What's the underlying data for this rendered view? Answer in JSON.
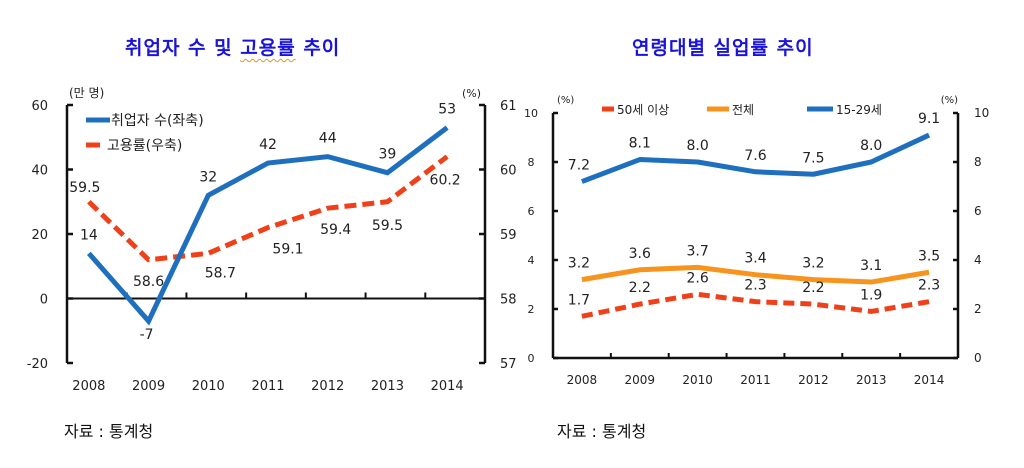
{
  "chart_data": [
    {
      "type": "line",
      "title": "취업자 수 및 고용률 추이",
      "title_parts": [
        "취업자 수 및 ",
        "고용률",
        " 추이"
      ],
      "categories": [
        "2008",
        "2009",
        "2010",
        "2011",
        "2012",
        "2013",
        "2014"
      ],
      "left_axis": {
        "unit": "(만 명)",
        "ylim": [
          -20,
          60
        ],
        "ticks": [
          "60",
          "40",
          "20",
          "0",
          "-20"
        ]
      },
      "right_axis": {
        "unit": "(%)",
        "ylim": [
          57,
          61
        ],
        "ticks": [
          "61",
          "60",
          "59",
          "58",
          "57"
        ]
      },
      "series": [
        {
          "name": "취업자 수(좌축)",
          "axis": "left",
          "color": "#1f6fbf",
          "style": "solid",
          "values": [
            14,
            -7,
            32,
            42,
            44,
            39,
            53
          ],
          "labels": [
            "14",
            "-7",
            "32",
            "42",
            "44",
            "39",
            "53"
          ]
        },
        {
          "name": "고용률(우축)",
          "axis": "right",
          "color": "#f0401a",
          "style": "dashed",
          "values": [
            59.5,
            58.6,
            58.7,
            59.1,
            59.4,
            59.5,
            60.2
          ],
          "labels": [
            "59.5",
            "58.6",
            "58.7",
            "59.1",
            "59.4",
            "59.5",
            "60.2"
          ]
        }
      ],
      "source": "자료 : 통계청"
    },
    {
      "type": "line",
      "title": "연령대별 실업률 추이",
      "categories": [
        "2008",
        "2009",
        "2010",
        "2011",
        "2012",
        "2013",
        "2014"
      ],
      "left_axis": {
        "unit": "(%)",
        "ylim": [
          0,
          10
        ],
        "ticks": [
          "10",
          "8",
          "6",
          "4",
          "2",
          "0"
        ]
      },
      "right_axis": {
        "unit": "(%)",
        "ylim": [
          0,
          10
        ],
        "ticks": [
          "10",
          "8",
          "6",
          "4",
          "2",
          "0"
        ]
      },
      "series": [
        {
          "name": "50세 이상",
          "color": "#f0401a",
          "style": "dashed",
          "values": [
            1.7,
            2.2,
            2.6,
            2.3,
            2.2,
            1.9,
            2.3
          ],
          "labels": [
            "1.7",
            "2.2",
            "2.6",
            "2.3",
            "2.2",
            "1.9",
            "2.3"
          ]
        },
        {
          "name": "전체",
          "color": "#f7941d",
          "style": "solid",
          "values": [
            3.2,
            3.6,
            3.7,
            3.4,
            3.2,
            3.1,
            3.5
          ],
          "labels": [
            "3.2",
            "3.6",
            "3.7",
            "3.4",
            "3.2",
            "3.1",
            "3.5"
          ]
        },
        {
          "name": "15-29세",
          "color": "#1f6fbf",
          "style": "solid",
          "values": [
            7.2,
            8.1,
            8.0,
            7.6,
            7.5,
            8.0,
            9.1
          ],
          "labels": [
            "7.2",
            "8.1",
            "8.0",
            "7.6",
            "7.5",
            "8.0",
            "9.1"
          ]
        }
      ],
      "source": "자료 : 통계청"
    }
  ]
}
